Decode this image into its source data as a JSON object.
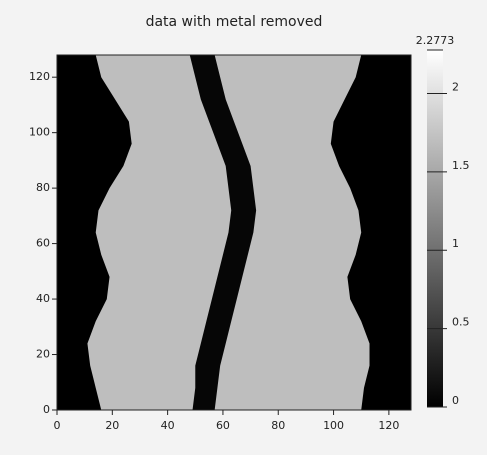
{
  "chart_data": {
    "type": "image",
    "title": "data with metal removed",
    "xlim": [
      0,
      128
    ],
    "ylim": [
      0,
      128
    ],
    "xticks": [
      0,
      20,
      40,
      60,
      80,
      100,
      120
    ],
    "yticks": [
      0,
      20,
      40,
      60,
      80,
      100,
      120
    ],
    "y": [
      0,
      8,
      16,
      24,
      32,
      40,
      48,
      56,
      64,
      72,
      80,
      88,
      96,
      104,
      112,
      120,
      128
    ],
    "body_left": [
      16,
      14,
      12,
      11,
      14,
      18,
      19,
      16,
      14,
      15,
      19,
      24,
      27,
      26,
      21,
      16,
      14
    ],
    "body_right": [
      110,
      111,
      113,
      113,
      110,
      106,
      105,
      108,
      110,
      109,
      106,
      102,
      99,
      100,
      104,
      108,
      110
    ],
    "metal_left": [
      49,
      50,
      50,
      52,
      54,
      56,
      58,
      60,
      62,
      63,
      62,
      61,
      58,
      55,
      52,
      50,
      48
    ],
    "metal_right": [
      57,
      58,
      59,
      61,
      63,
      65,
      67,
      69,
      71,
      72,
      71,
      70,
      67,
      64,
      61,
      59,
      57
    ],
    "background_value": 0,
    "body_value": 1.7,
    "metal_value": 0.05,
    "clim": [
      0,
      2.2773
    ],
    "cticks": [
      0,
      0.5,
      1,
      1.5,
      2,
      {
        "value": 2.2773,
        "label": "2.2773"
      }
    ]
  }
}
